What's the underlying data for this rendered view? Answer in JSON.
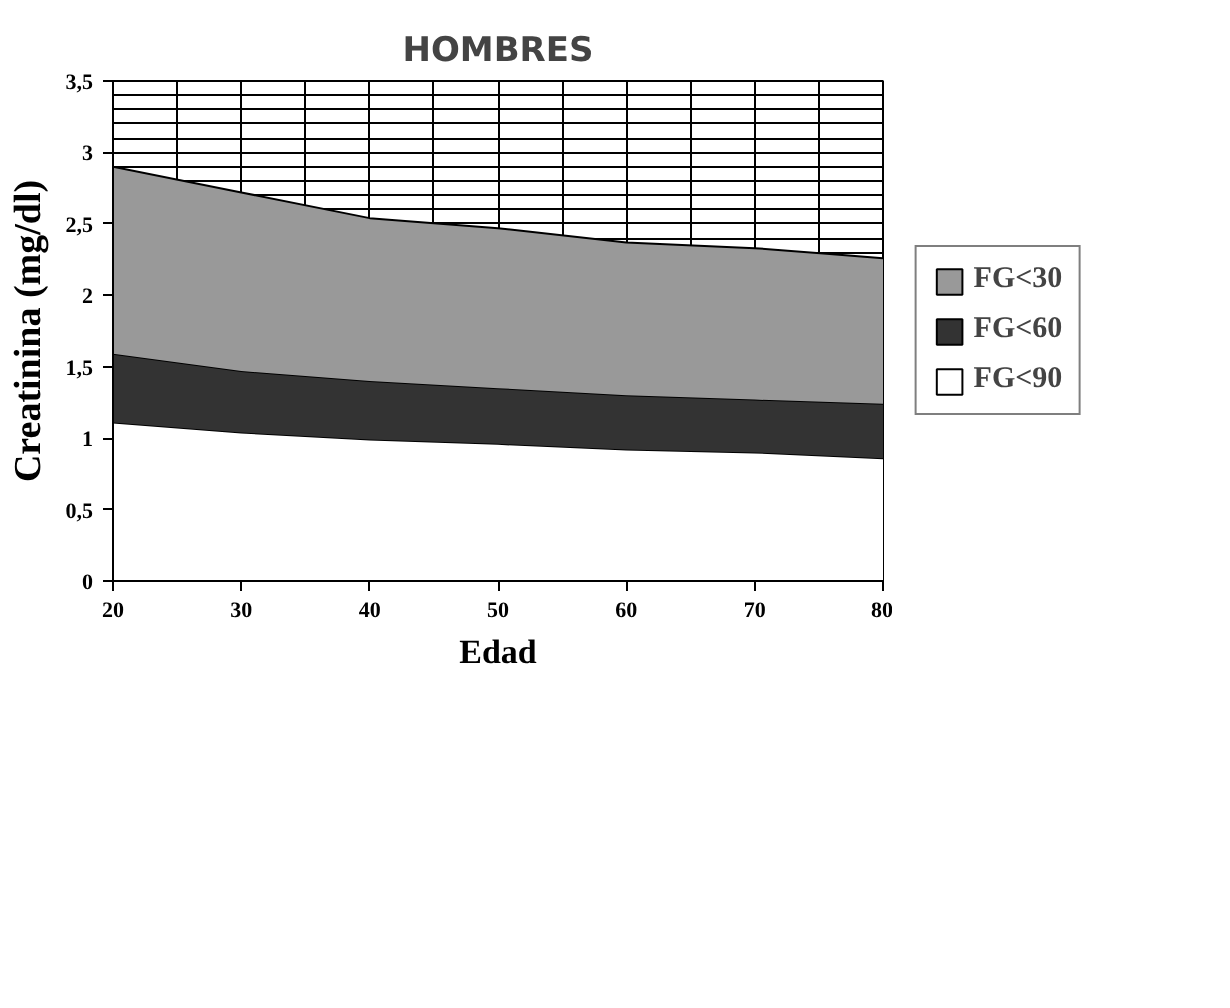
{
  "chart_data": {
    "type": "area",
    "title": "HOMBRES",
    "xlabel": "Edad",
    "ylabel": "Creatinina (mg/dl)",
    "stacked": true,
    "x": [
      20,
      30,
      40,
      50,
      60,
      70,
      80
    ],
    "series": [
      {
        "name": "FG<90",
        "color": "#ffffff",
        "values": [
          1.11,
          1.04,
          0.99,
          0.96,
          0.92,
          0.9,
          0.86
        ]
      },
      {
        "name": "FG<60",
        "color": "#333333",
        "values": [
          0.48,
          0.43,
          0.41,
          0.39,
          0.38,
          0.37,
          0.38
        ]
      },
      {
        "name": "FG<30",
        "color": "#999999",
        "values": [
          1.31,
          1.25,
          1.14,
          1.12,
          1.07,
          1.06,
          1.02
        ]
      }
    ],
    "xlim": [
      20,
      80
    ],
    "xticks": [
      20,
      30,
      40,
      50,
      60,
      70,
      80
    ],
    "ylim": [
      0,
      3.5
    ],
    "yticks": [
      0,
      {
        "value": 0.5,
        "label": "0,5"
      },
      1,
      {
        "value": 1.5,
        "label": "1,5"
      },
      2,
      {
        "value": 2.5,
        "label": "2,5"
      },
      3,
      {
        "value": 3.5,
        "label": "3,5"
      }
    ],
    "grid": true,
    "legend": "right"
  }
}
